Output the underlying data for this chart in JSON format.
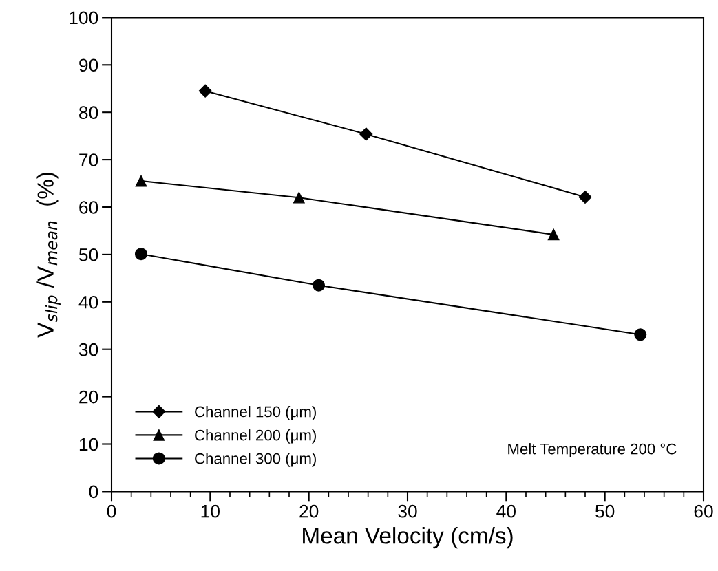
{
  "chart_data": {
    "type": "line",
    "xlabel": "Mean Velocity (cm/s)",
    "ylabel": "V$_{slip}$ /V$_{mean}$  (%)",
    "xlim": [
      0,
      60
    ],
    "xticks": [
      0,
      10,
      20,
      30,
      40,
      50,
      60
    ],
    "ylim": [
      0,
      100
    ],
    "yticks": [
      0,
      10,
      20,
      30,
      40,
      50,
      60,
      70,
      80,
      90,
      100
    ],
    "grid": false,
    "legend": "bottom left",
    "line_style": "solid",
    "annotations": [
      "Melt Temperature 200 °C"
    ],
    "series": [
      {
        "name": "Channel 150 (μm)",
        "color": "#000000",
        "marker": "diamond",
        "x": [
          9.5,
          25.8,
          48.0
        ],
        "values": [
          84.5,
          75.4,
          62.1
        ]
      },
      {
        "name": "Channel 200 (μm)",
        "color": "#000000",
        "marker": "triangle",
        "x": [
          3.0,
          19.0,
          44.8
        ],
        "values": [
          65.5,
          62.0,
          54.2
        ]
      },
      {
        "name": "Channel 300 (μm)",
        "color": "#000000",
        "marker": "circle",
        "x": [
          3.0,
          21.0,
          53.6
        ],
        "values": [
          50.1,
          43.5,
          33.1
        ]
      }
    ]
  }
}
